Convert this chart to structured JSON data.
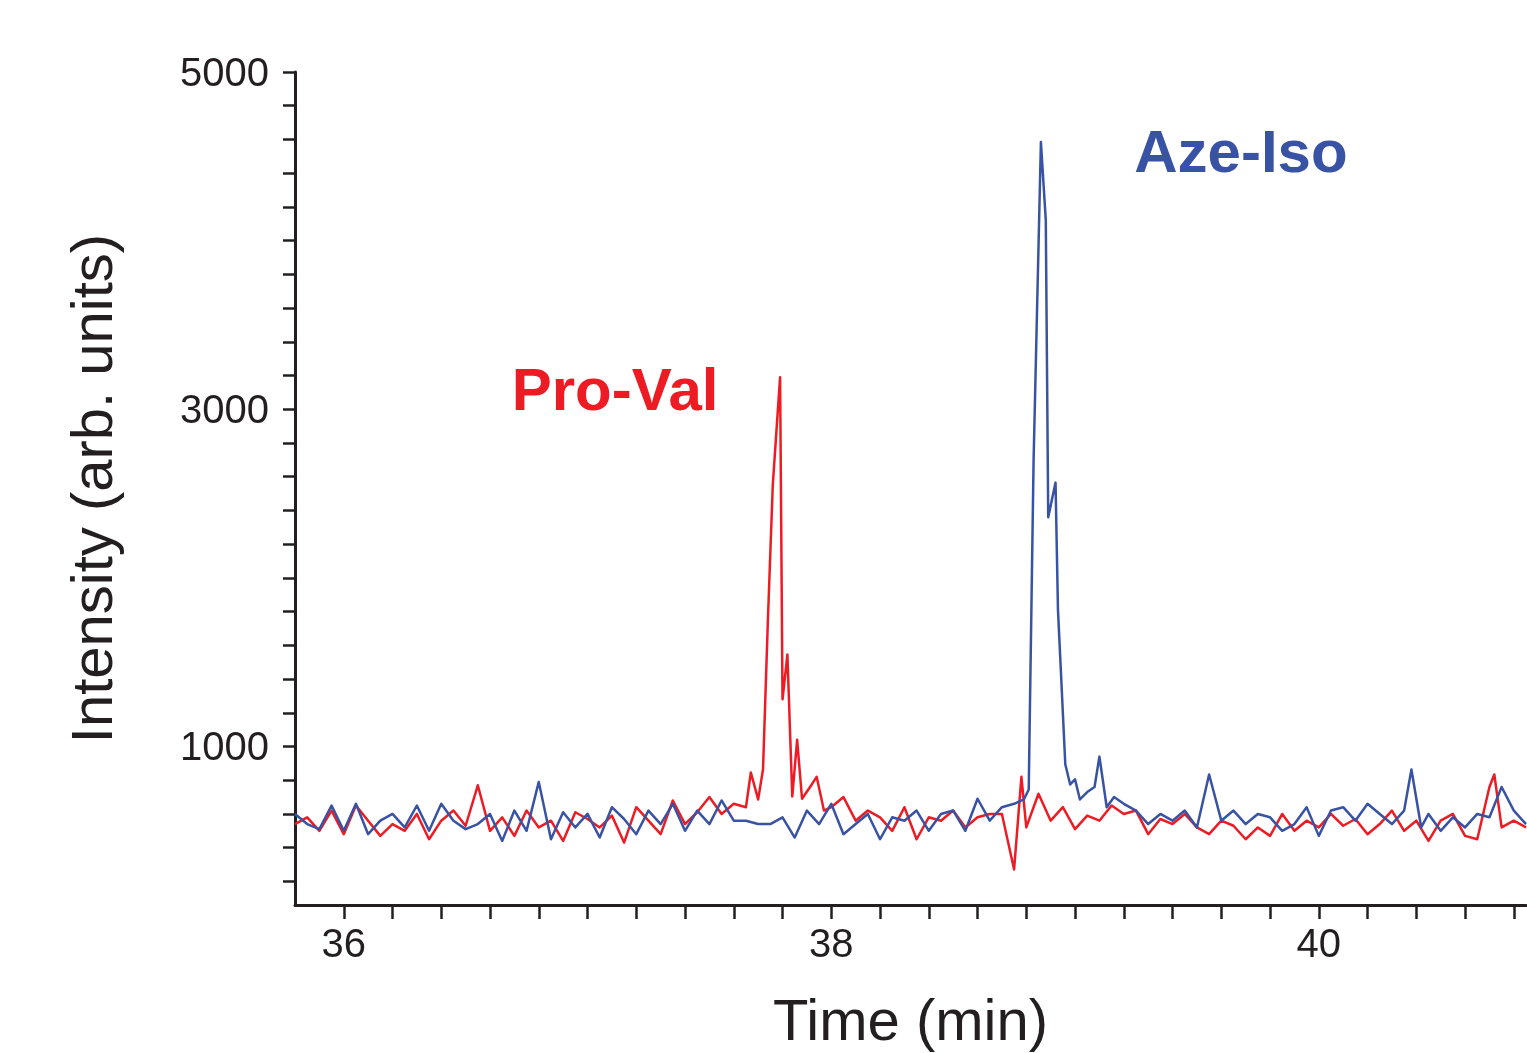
{
  "chart_data": {
    "type": "line",
    "xlabel": "Time (min)",
    "ylabel": "Intensity (arb. units)",
    "xlim": [
      35.8,
      40.85
    ],
    "ylim": [
      60,
      5000
    ],
    "xticks": [
      36,
      {
        "value": 36.2,
        "label": null
      },
      {
        "value": 36.4,
        "label": null
      },
      {
        "value": 36.6,
        "label": null
      },
      {
        "value": 36.8,
        "label": null
      },
      {
        "value": 37,
        "label": null
      },
      {
        "value": 37.2,
        "label": null
      },
      {
        "value": 37.4,
        "label": null
      },
      {
        "value": 37.6,
        "label": null
      },
      {
        "value": 37.8,
        "label": null
      },
      38,
      {
        "value": 38.2,
        "label": null
      },
      {
        "value": 38.4,
        "label": null
      },
      {
        "value": 38.6,
        "label": null
      },
      {
        "value": 38.8,
        "label": null
      },
      {
        "value": 39,
        "label": null
      },
      {
        "value": 39.2,
        "label": null
      },
      {
        "value": 39.4,
        "label": null
      },
      {
        "value": 39.6,
        "label": null
      },
      {
        "value": 39.8,
        "label": null
      },
      40,
      {
        "value": 40.2,
        "label": null
      },
      {
        "value": 40.4,
        "label": null
      },
      {
        "value": 40.6,
        "label": null
      },
      {
        "value": 40.8,
        "label": null
      }
    ],
    "yticks": [
      {
        "value": 200,
        "label": null
      },
      {
        "value": 400,
        "label": null
      },
      {
        "value": 600,
        "label": null
      },
      {
        "value": 800,
        "label": null
      },
      1000,
      {
        "value": 1200,
        "label": null
      },
      {
        "value": 1400,
        "label": null
      },
      {
        "value": 1600,
        "label": null
      },
      {
        "value": 1800,
        "label": null
      },
      {
        "value": 2000,
        "label": null
      },
      {
        "value": 2200,
        "label": null
      },
      {
        "value": 2400,
        "label": null
      },
      {
        "value": 2600,
        "label": null
      },
      {
        "value": 2800,
        "label": null
      },
      3000,
      {
        "value": 3200,
        "label": null
      },
      {
        "value": 3400,
        "label": null
      },
      {
        "value": 3600,
        "label": null
      },
      {
        "value": 3800,
        "label": null
      },
      {
        "value": 4000,
        "label": null
      },
      {
        "value": 4200,
        "label": null
      },
      {
        "value": 4400,
        "label": null
      },
      {
        "value": 4600,
        "label": null
      },
      {
        "value": 4800,
        "label": null
      },
      5000
    ],
    "grid": false,
    "legend": false,
    "marker": "none",
    "line_style": "solid",
    "series": [
      {
        "name": "Pro-Val",
        "color": "#ed1c24",
        "x": [
          35.8,
          35.85,
          35.9,
          35.95,
          36.0,
          36.05,
          36.1,
          36.15,
          36.2,
          36.25,
          36.3,
          36.35,
          36.4,
          36.45,
          36.5,
          36.55,
          36.6,
          36.65,
          36.7,
          36.75,
          36.8,
          36.85,
          36.9,
          36.95,
          37.0,
          37.05,
          37.1,
          37.15,
          37.2,
          37.25,
          37.3,
          37.35,
          37.4,
          37.45,
          37.5,
          37.55,
          37.6,
          37.65,
          37.67,
          37.7,
          37.72,
          37.74,
          37.76,
          37.79,
          37.8,
          37.82,
          37.84,
          37.86,
          37.88,
          37.92,
          37.94,
          37.97,
          38.0,
          38.05,
          38.1,
          38.15,
          38.2,
          38.25,
          38.3,
          38.35,
          38.4,
          38.45,
          38.5,
          38.55,
          38.6,
          38.65,
          38.7,
          38.75,
          38.78,
          38.8,
          38.85,
          38.9,
          38.95,
          39.0,
          39.05,
          39.1,
          39.15,
          39.2,
          39.25,
          39.3,
          39.35,
          39.4,
          39.45,
          39.5,
          39.55,
          39.6,
          39.65,
          39.7,
          39.75,
          39.8,
          39.85,
          39.9,
          39.95,
          40.0,
          40.05,
          40.1,
          40.15,
          40.2,
          40.25,
          40.3,
          40.35,
          40.4,
          40.45,
          40.5,
          40.55,
          40.6,
          40.65,
          40.7,
          40.72,
          40.75,
          40.8,
          40.85
        ],
        "values": [
          540,
          580,
          500,
          620,
          480,
          650,
          560,
          470,
          540,
          500,
          600,
          450,
          560,
          620,
          530,
          770,
          500,
          580,
          470,
          620,
          520,
          560,
          440,
          610,
          570,
          520,
          590,
          430,
          640,
          560,
          480,
          680,
          540,
          610,
          700,
          600,
          660,
          640,
          846,
          686,
          865,
          1750,
          2550,
          3190,
          1280,
          1545,
          704,
          1040,
          690,
          775,
          820,
          620,
          640,
          700,
          560,
          620,
          580,
          500,
          640,
          450,
          580,
          560,
          620,
          520,
          580,
          600,
          600,
          271,
          820,
          520,
          720,
          560,
          640,
          510,
          590,
          560,
          650,
          600,
          620,
          480,
          570,
          540,
          600,
          520,
          480,
          560,
          530,
          450,
          520,
          470,
          600,
          500,
          560,
          520,
          600,
          530,
          570,
          480,
          540,
          620,
          500,
          560,
          440,
          560,
          600,
          470,
          450,
          760,
          834,
          520,
          560,
          520
        ]
      },
      {
        "name": "Aze-Iso",
        "color": "#3953a4",
        "x": [
          35.8,
          35.85,
          35.9,
          35.95,
          36.0,
          36.05,
          36.1,
          36.15,
          36.2,
          36.25,
          36.3,
          36.35,
          36.4,
          36.45,
          36.5,
          36.55,
          36.6,
          36.65,
          36.7,
          36.75,
          36.8,
          36.85,
          36.9,
          36.95,
          37.0,
          37.05,
          37.1,
          37.15,
          37.2,
          37.25,
          37.3,
          37.35,
          37.4,
          37.45,
          37.5,
          37.55,
          37.6,
          37.65,
          37.7,
          37.75,
          37.8,
          37.85,
          37.9,
          37.95,
          38.0,
          38.05,
          38.1,
          38.15,
          38.2,
          38.25,
          38.3,
          38.35,
          38.4,
          38.45,
          38.5,
          38.55,
          38.6,
          38.65,
          38.7,
          38.75,
          38.79,
          38.81,
          38.83,
          38.86,
          38.88,
          38.89,
          38.92,
          38.93,
          38.96,
          38.98,
          39.0,
          39.02,
          39.05,
          39.08,
          39.1,
          39.13,
          39.16,
          39.2,
          39.25,
          39.3,
          39.35,
          39.4,
          39.45,
          39.5,
          39.55,
          39.6,
          39.65,
          39.7,
          39.75,
          39.8,
          39.85,
          39.9,
          39.95,
          40.0,
          40.05,
          40.1,
          40.15,
          40.2,
          40.25,
          40.3,
          40.35,
          40.38,
          40.42,
          40.45,
          40.5,
          40.55,
          40.6,
          40.65,
          40.7,
          40.75,
          40.8,
          40.85
        ],
        "values": [
          600,
          540,
          510,
          650,
          500,
          660,
          480,
          560,
          600,
          520,
          650,
          500,
          660,
          560,
          510,
          540,
          600,
          440,
          620,
          500,
          790,
          450,
          610,
          520,
          600,
          460,
          640,
          570,
          480,
          620,
          540,
          660,
          500,
          620,
          540,
          680,
          560,
          560,
          540,
          540,
          580,
          460,
          620,
          540,
          660,
          480,
          540,
          600,
          450,
          580,
          560,
          620,
          500,
          600,
          620,
          500,
          690,
          560,
          640,
          660,
          686,
          745,
          2700,
          4585,
          4120,
          2360,
          2565,
          1810,
          895,
          775,
          805,
          686,
          730,
          760,
          940,
          640,
          700,
          660,
          620,
          540,
          600,
          560,
          620,
          520,
          834,
          560,
          620,
          540,
          600,
          580,
          500,
          540,
          640,
          470,
          620,
          640,
          560,
          660,
          600,
          540,
          620,
          864,
          520,
          600,
          500,
          580,
          520,
          600,
          580,
          760,
          620,
          540
        ]
      }
    ]
  }
}
